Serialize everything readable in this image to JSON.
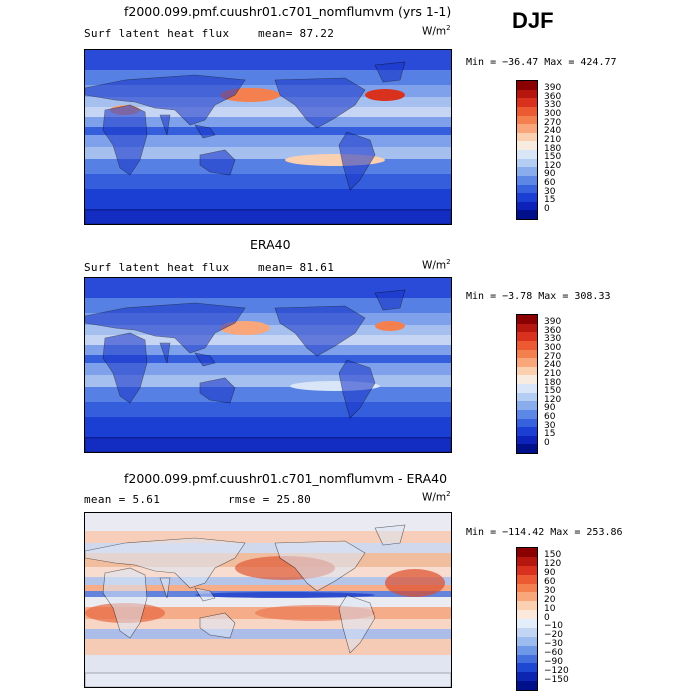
{
  "season_label": "DJF",
  "units_base": "W/m",
  "units_exp": "2",
  "panels": [
    {
      "title": "f2000.099.pmf.cuushr01.c701_nomflumvm (yrs 1-1)",
      "left_text": "Surf latent heat flux",
      "stat_text": "mean=  87.22",
      "minmax": "Min = −36.47 Max = 424.77",
      "colorbar": {
        "labels": [
          "390",
          "360",
          "330",
          "300",
          "270",
          "240",
          "210",
          "180",
          "150",
          "120",
          "90",
          "60",
          "30",
          "15",
          "0"
        ],
        "colors": [
          "#8b0000",
          "#b5160d",
          "#d8321e",
          "#ec5a34",
          "#f5804f",
          "#f9a77a",
          "#fbd0b0",
          "#f7ecdf",
          "#d8e6f7",
          "#b4cdf2",
          "#89aced",
          "#5d87e6",
          "#3762dd",
          "#1b3fd3",
          "#0d22b8",
          "#00108a"
        ]
      },
      "map_style": "model"
    },
    {
      "title": "ERA40",
      "left_text": "Surf latent heat flux",
      "stat_text": "mean=  81.61",
      "minmax": "Min =  −3.78 Max = 308.33",
      "colorbar": {
        "labels": [
          "390",
          "360",
          "330",
          "300",
          "270",
          "240",
          "210",
          "180",
          "150",
          "120",
          "90",
          "60",
          "30",
          "15",
          "0"
        ],
        "colors": [
          "#8b0000",
          "#b5160d",
          "#d8321e",
          "#ec5a34",
          "#f5804f",
          "#f9a77a",
          "#fbd0b0",
          "#f7ecdf",
          "#d8e6f7",
          "#b4cdf2",
          "#89aced",
          "#5d87e6",
          "#3762dd",
          "#1b3fd3",
          "#0d22b8",
          "#00108a"
        ]
      },
      "map_style": "obs"
    },
    {
      "title": "f2000.099.pmf.cuushr01.c701_nomflumvm - ERA40",
      "left_text": "mean =   5.61",
      "stat_text": "rmse =  25.80",
      "minmax": "Min = −114.42 Max = 253.86",
      "colorbar": {
        "labels": [
          "150",
          "120",
          "90",
          "60",
          "30",
          "20",
          "10",
          "0",
          "−10",
          "−20",
          "−30",
          "−60",
          "−90",
          "−120",
          "−150"
        ],
        "colors": [
          "#8b0000",
          "#b5160d",
          "#d8321e",
          "#ec5a34",
          "#f5804f",
          "#f9a77a",
          "#fbd0b0",
          "#fde8dc",
          "#e4eefa",
          "#c2d6f4",
          "#9cbbef",
          "#6f97e8",
          "#4470df",
          "#1f48d2",
          "#0c26b2",
          "#00108a"
        ]
      },
      "map_style": "diff"
    }
  ],
  "chart_data": {
    "type": "heatmap",
    "season": "DJF",
    "variable": "Surf latent heat flux",
    "units": "W/m^2",
    "panels": [
      {
        "title": "f2000.099.pmf.cuushr01.c701_nomflumvm (yrs 1-1)",
        "mean": 87.22,
        "min": -36.47,
        "max": 424.77,
        "contour_levels": [
          0,
          15,
          30,
          60,
          90,
          120,
          150,
          180,
          210,
          240,
          270,
          300,
          330,
          360,
          390
        ]
      },
      {
        "title": "ERA40",
        "mean": 81.61,
        "min": -3.78,
        "max": 308.33,
        "contour_levels": [
          0,
          15,
          30,
          60,
          90,
          120,
          150,
          180,
          210,
          240,
          270,
          300,
          330,
          360,
          390
        ]
      },
      {
        "title": "f2000.099.pmf.cuushr01.c701_nomflumvm - ERA40",
        "mean": 5.61,
        "rmse": 25.8,
        "min": -114.42,
        "max": 253.86,
        "contour_levels": [
          -150,
          -120,
          -90,
          -60,
          -30,
          -20,
          -10,
          0,
          10,
          20,
          30,
          60,
          90,
          120,
          150
        ]
      }
    ]
  }
}
